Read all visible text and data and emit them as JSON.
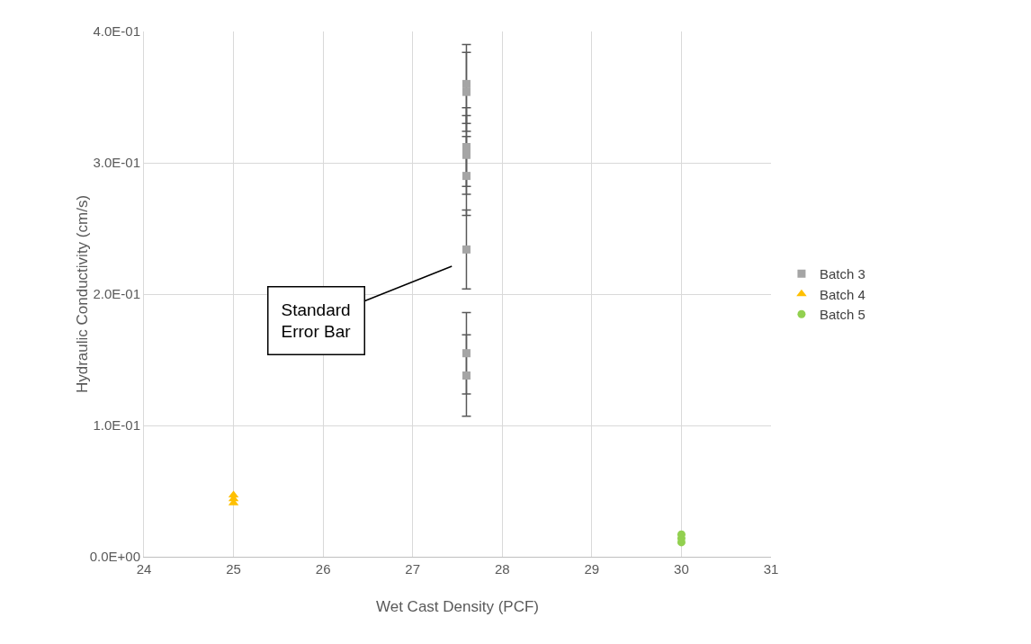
{
  "chart_data": {
    "type": "scatter",
    "xlabel": "Wet Cast Density (PCF)",
    "ylabel": "Hydraulic Conductivity (cm/s)",
    "xlim": [
      24,
      31
    ],
    "xticks": [
      24,
      25,
      26,
      27,
      28,
      29,
      30,
      31
    ],
    "ylim": [
      0,
      0.4
    ],
    "yticks": [
      {
        "value": 0,
        "label": "0.0E+00"
      },
      {
        "value": 0.1,
        "label": "1.0E-01"
      },
      {
        "value": 0.2,
        "label": "2.0E-01"
      },
      {
        "value": 0.3,
        "label": "3.0E-01"
      },
      {
        "value": 0.4,
        "label": "4.0E-01"
      }
    ],
    "grid": true,
    "legend": "right",
    "series": [
      {
        "name": "Batch 3",
        "color": "#a5a5a5",
        "marker": "square",
        "x": [
          27.6,
          27.6,
          27.6,
          27.6,
          27.6,
          27.6,
          27.6,
          27.6
        ],
        "values": [
          0.36,
          0.354,
          0.312,
          0.306,
          0.29,
          0.234,
          0.155,
          0.138
        ],
        "errors": [
          0.03,
          0.03,
          0.03,
          0.03,
          0.03,
          0.03,
          0.031,
          0.031
        ]
      },
      {
        "name": "Batch 4",
        "color": "#ffc000",
        "marker": "triangle",
        "x": [
          25,
          25,
          25
        ],
        "values": [
          0.047,
          0.044,
          0.041
        ]
      },
      {
        "name": "Batch 5",
        "color": "#92d050",
        "marker": "circle",
        "x": [
          30,
          30,
          30
        ],
        "values": [
          0.017,
          0.014,
          0.011
        ]
      }
    ],
    "annotations": [
      "Standard\nError Bar"
    ]
  }
}
